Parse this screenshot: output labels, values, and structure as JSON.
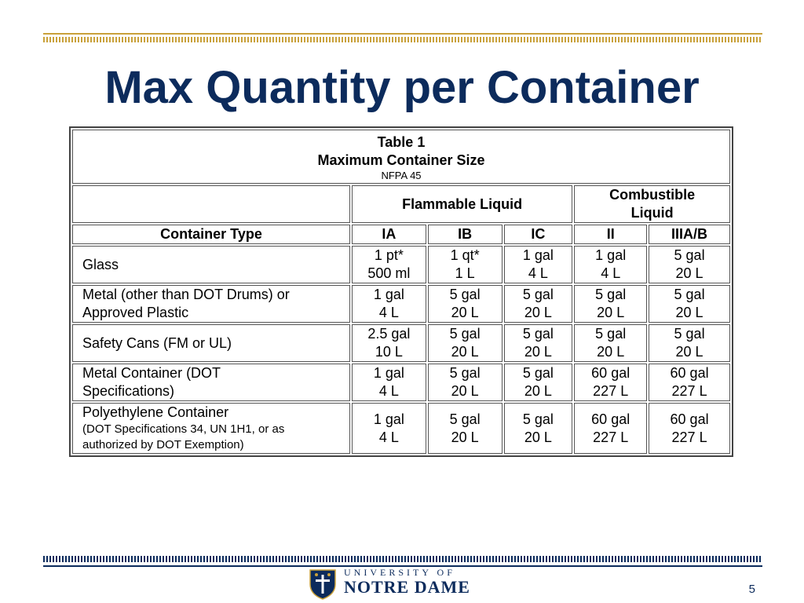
{
  "slide": {
    "title": "Max Quantity per Container",
    "page_number": "5"
  },
  "branding": {
    "university_of": "UNIVERSITY OF",
    "notre_dame": "NOTRE DAME",
    "seal_icon": "notre-dame-seal-icon",
    "colors": {
      "navy": "#0c2b5c",
      "gold": "#c9a13b"
    }
  },
  "table": {
    "caption": {
      "title": "Table 1",
      "subtitle": "Maximum Container Size",
      "source": "NFPA 45"
    },
    "groups": {
      "flammable": "Flammable Liquid",
      "combustible_line1": "Combustible",
      "combustible_line2": "Liquid"
    },
    "headers": {
      "container_type": "Container Type",
      "classes": [
        "IA",
        "IB",
        "IC",
        "II",
        "IIIA/B"
      ]
    },
    "rows": [
      {
        "type": [
          "Glass"
        ],
        "cells": [
          [
            "1 pt*",
            "500 ml"
          ],
          [
            "1 qt*",
            "1 L"
          ],
          [
            "1 gal",
            "4 L"
          ],
          [
            "1 gal",
            "4 L"
          ],
          [
            "5 gal",
            "20 L"
          ]
        ]
      },
      {
        "type": [
          "Metal (other than DOT Drums) or",
          "Approved Plastic"
        ],
        "cells": [
          [
            "1 gal",
            "4 L"
          ],
          [
            "5 gal",
            "20 L"
          ],
          [
            "5 gal",
            "20 L"
          ],
          [
            "5 gal",
            "20 L"
          ],
          [
            "5 gal",
            "20 L"
          ]
        ]
      },
      {
        "type": [
          "Safety Cans (FM or UL)"
        ],
        "cells": [
          [
            "2.5 gal",
            "10 L"
          ],
          [
            "5 gal",
            "20 L"
          ],
          [
            "5 gal",
            "20 L"
          ],
          [
            "5 gal",
            "20 L"
          ],
          [
            "5 gal",
            "20 L"
          ]
        ]
      },
      {
        "type": [
          "Metal Container (DOT",
          "Specifications)"
        ],
        "cells": [
          [
            "1 gal",
            "4 L"
          ],
          [
            "5 gal",
            "20 L"
          ],
          [
            "5 gal",
            "20 L"
          ],
          [
            "60 gal",
            "227 L"
          ],
          [
            "60 gal",
            "227 L"
          ]
        ]
      },
      {
        "type": [
          "Polyethylene Container"
        ],
        "type_note": [
          "(DOT Specifications 34, UN 1H1, or as",
          "authorized by DOT Exemption)"
        ],
        "cells": [
          [
            "1 gal",
            "4 L"
          ],
          [
            "5 gal",
            "20 L"
          ],
          [
            "5 gal",
            "20 L"
          ],
          [
            "60 gal",
            "227 L"
          ],
          [
            "60 gal",
            "227 L"
          ]
        ]
      }
    ]
  }
}
